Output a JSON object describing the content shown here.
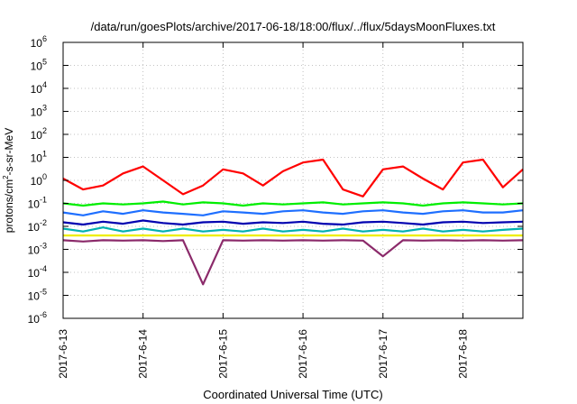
{
  "chart_data": {
    "type": "line",
    "title": "/data/run/goesPlots/archive/2017-06-18/18:00/flux/../flux/5daysMoonFluxes.txt",
    "xlabel": "Coordinated Universal Time (UTC)",
    "ylabel": "protons/cm²-s-sr-MeV",
    "ylabel_parts": {
      "prefix": "protons/cm",
      "sup": "2",
      "suffix": "-s-sr-MeV"
    },
    "yscale": "log",
    "ylim": [
      1e-06,
      1000000.0
    ],
    "xlim": [
      "2017-06-13T00:00",
      "2017-06-18T18:00"
    ],
    "grid": true,
    "x_ticks": [
      "2017-6-13",
      "2017-6-14",
      "2017-6-15",
      "2017-6-16",
      "2017-6-17",
      "2017-6-18"
    ],
    "y_ticks": [
      {
        "base": "10",
        "exp": "6"
      },
      {
        "base": "10",
        "exp": "5"
      },
      {
        "base": "10",
        "exp": "4"
      },
      {
        "base": "10",
        "exp": "3"
      },
      {
        "base": "10",
        "exp": "2"
      },
      {
        "base": "10",
        "exp": "1"
      },
      {
        "base": "10",
        "exp": "0"
      },
      {
        "base": "10",
        "exp": "-1"
      },
      {
        "base": "10",
        "exp": "-2"
      },
      {
        "base": "10",
        "exp": "-3"
      },
      {
        "base": "10",
        "exp": "-4"
      },
      {
        "base": "10",
        "exp": "-5"
      },
      {
        "base": "10",
        "exp": "-6"
      }
    ],
    "x": [
      "2017-06-13T00:00",
      "2017-06-13T06:00",
      "2017-06-13T12:00",
      "2017-06-13T18:00",
      "2017-06-14T00:00",
      "2017-06-14T06:00",
      "2017-06-14T12:00",
      "2017-06-14T18:00",
      "2017-06-15T00:00",
      "2017-06-15T06:00",
      "2017-06-15T12:00",
      "2017-06-15T18:00",
      "2017-06-16T00:00",
      "2017-06-16T06:00",
      "2017-06-16T12:00",
      "2017-06-16T18:00",
      "2017-06-17T00:00",
      "2017-06-17T06:00",
      "2017-06-17T12:00",
      "2017-06-17T18:00",
      "2017-06-18T00:00",
      "2017-06-18T06:00",
      "2017-06-18T12:00",
      "2017-06-18T18:00"
    ],
    "series": [
      {
        "color": "#ff0000",
        "values": [
          1.2,
          0.4,
          0.6,
          2.0,
          4.0,
          1.0,
          0.25,
          0.6,
          3.0,
          2.0,
          0.6,
          2.5,
          6.0,
          8.0,
          0.4,
          0.2,
          3.0,
          4.0,
          1.2,
          0.4,
          6.0,
          8.0,
          0.5,
          3.0
        ]
      },
      {
        "color": "#00ee00",
        "values": [
          0.1,
          0.08,
          0.1,
          0.09,
          0.1,
          0.12,
          0.09,
          0.11,
          0.1,
          0.08,
          0.1,
          0.09,
          0.1,
          0.11,
          0.09,
          0.1,
          0.11,
          0.1,
          0.08,
          0.1,
          0.11,
          0.1,
          0.09,
          0.1
        ]
      },
      {
        "color": "#1e6fff",
        "values": [
          0.04,
          0.03,
          0.045,
          0.035,
          0.05,
          0.04,
          0.035,
          0.03,
          0.045,
          0.04,
          0.035,
          0.045,
          0.05,
          0.04,
          0.035,
          0.045,
          0.05,
          0.04,
          0.035,
          0.045,
          0.05,
          0.04,
          0.04,
          0.05
        ]
      },
      {
        "color": "#0000b0",
        "values": [
          0.015,
          0.012,
          0.016,
          0.013,
          0.018,
          0.014,
          0.012,
          0.015,
          0.016,
          0.013,
          0.015,
          0.014,
          0.016,
          0.013,
          0.012,
          0.015,
          0.016,
          0.014,
          0.012,
          0.015,
          0.016,
          0.014,
          0.015,
          0.016
        ]
      },
      {
        "color": "#00b0b0",
        "values": [
          0.008,
          0.006,
          0.009,
          0.006,
          0.008,
          0.006,
          0.008,
          0.006,
          0.007,
          0.006,
          0.008,
          0.006,
          0.007,
          0.006,
          0.008,
          0.006,
          0.007,
          0.006,
          0.008,
          0.006,
          0.007,
          0.006,
          0.007,
          0.008
        ]
      },
      {
        "color": "#eeee00",
        "values": [
          0.004,
          0.004,
          0.004,
          0.004,
          0.004,
          0.004,
          0.004,
          0.004,
          0.004,
          0.004,
          0.004,
          0.004,
          0.004,
          0.004,
          0.004,
          0.004,
          0.004,
          0.004,
          0.004,
          0.004,
          0.004,
          0.004,
          0.004,
          0.004
        ]
      },
      {
        "color": "#8b2a6a",
        "values": [
          0.0025,
          0.0022,
          0.0025,
          0.0024,
          0.0025,
          0.0023,
          0.0025,
          3e-05,
          0.0025,
          0.0024,
          0.0025,
          0.0024,
          0.0025,
          0.0024,
          0.0025,
          0.0024,
          0.0005,
          0.0025,
          0.0024,
          0.0025,
          0.0024,
          0.0025,
          0.0024,
          0.0025
        ]
      }
    ]
  }
}
